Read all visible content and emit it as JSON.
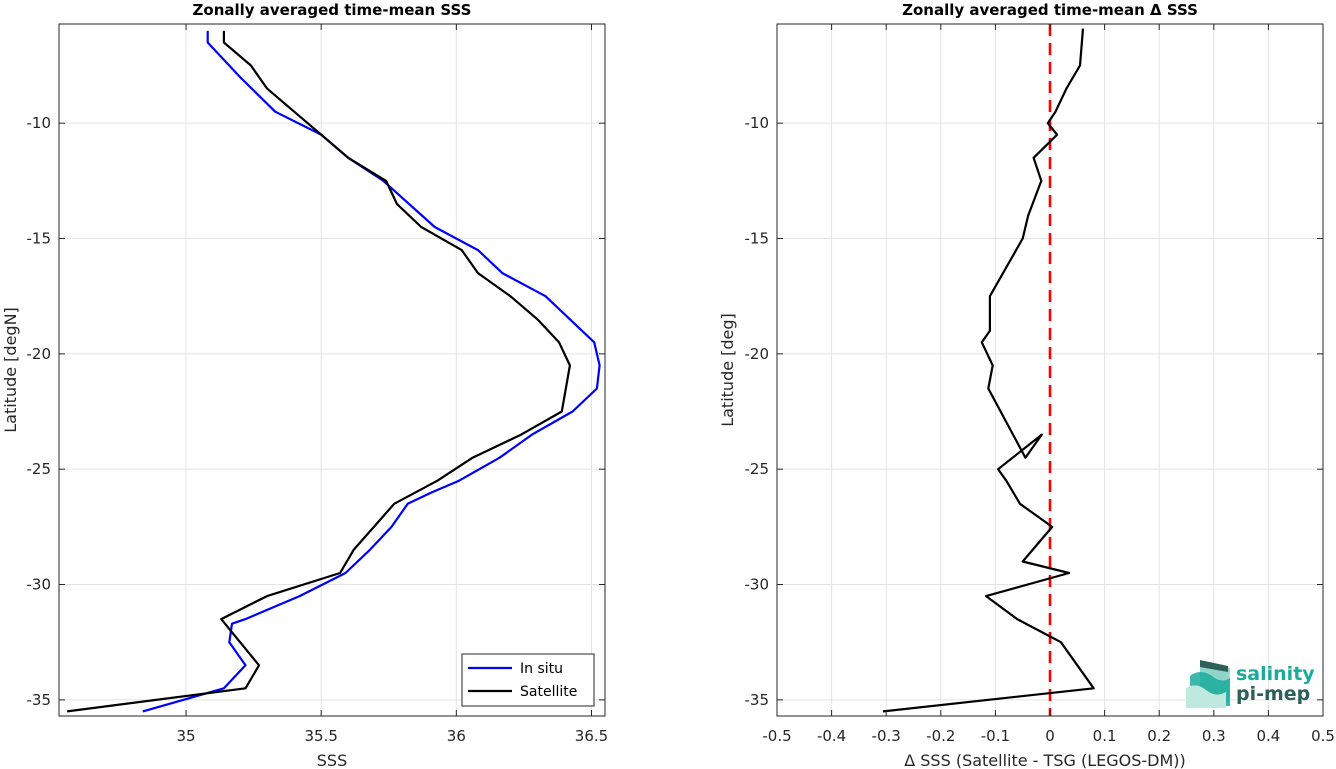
{
  "colors": {
    "in_situ": "#0000ff",
    "satellite": "#000000",
    "zero_line": "#ff0000",
    "logo_primary": "#1aab9b",
    "logo_secondary": "#2f5f5a"
  },
  "logo": {
    "line1": "salinity",
    "line2": "pi-mep",
    "icon": "wave-logo-icon"
  },
  "chart_data": [
    {
      "type": "line",
      "title": "Zonally averaged time-mean SSS",
      "xlabel": "SSS",
      "ylabel": "Latitude [degN]",
      "xlim": [
        34.53,
        36.55
      ],
      "ylim": [
        -35.7,
        -5.7
      ],
      "xticks": [
        35,
        35.5,
        36,
        36.5
      ],
      "yticks": [
        -35,
        -30,
        -25,
        -20,
        -15,
        -10
      ],
      "grid": true,
      "legend": {
        "location": "bottom-right",
        "entries": [
          "In situ",
          "Satellite"
        ]
      },
      "series": [
        {
          "name": "In situ",
          "color": "#0000ff",
          "x": [
            35.08,
            35.08,
            35.2,
            35.33,
            35.5,
            35.6,
            35.73,
            35.92,
            36.08,
            36.17,
            36.33,
            36.51,
            36.53,
            36.52,
            36.43,
            36.28,
            36.16,
            36.01,
            35.91,
            35.82,
            35.76,
            35.68,
            35.59,
            35.42,
            35.22,
            35.17,
            35.16,
            35.22,
            35.14,
            34.84
          ],
          "y": [
            -6,
            -6.5,
            -8,
            -9.5,
            -10.5,
            -11.5,
            -12.5,
            -14.5,
            -15.5,
            -16.5,
            -17.5,
            -19.5,
            -20.5,
            -21.5,
            -22.5,
            -23.5,
            -24.5,
            -25.5,
            -26,
            -26.5,
            -27.5,
            -28.5,
            -29.5,
            -30.5,
            -31.5,
            -31.7,
            -32.5,
            -33.5,
            -34.5,
            -35.5
          ]
        },
        {
          "name": "Satellite",
          "color": "#000000",
          "x": [
            35.14,
            35.14,
            35.24,
            35.3,
            35.4,
            35.5,
            35.6,
            35.74,
            35.78,
            35.87,
            36.02,
            36.08,
            36.2,
            36.3,
            36.38,
            36.42,
            36.39,
            36.24,
            36.06,
            35.93,
            35.77,
            35.62,
            35.57,
            35.3,
            35.13,
            35.27,
            35.22,
            34.56
          ],
          "y": [
            -6,
            -6.5,
            -7.5,
            -8.5,
            -9.5,
            -10.5,
            -11.5,
            -12.5,
            -13.5,
            -14.5,
            -15.5,
            -16.5,
            -17.5,
            -18.5,
            -19.5,
            -20.5,
            -22.5,
            -23.5,
            -24.5,
            -25.5,
            -26.5,
            -28.5,
            -29.5,
            -30.5,
            -31.5,
            -33.5,
            -34.5,
            -35.5
          ]
        }
      ]
    },
    {
      "type": "line",
      "title": "Zonally averaged time-mean Δ SSS",
      "xlabel": "Δ SSS (Satellite - TSG (LEGOS-DM))",
      "ylabel": "Latitude [deg]",
      "xlim": [
        -0.5,
        0.5
      ],
      "ylim": [
        -35.7,
        -5.7
      ],
      "xticks": [
        -0.5,
        -0.4,
        -0.3,
        -0.2,
        -0.1,
        0,
        0.1,
        0.2,
        0.3,
        0.4,
        0.5
      ],
      "yticks": [
        -35,
        -30,
        -25,
        -20,
        -15,
        -10
      ],
      "grid": true,
      "reference_line": {
        "x": 0,
        "style": "dashed",
        "color": "#ff0000"
      },
      "series": [
        {
          "color": "#000000",
          "x": [
            0.06,
            0.06,
            0.055,
            0.03,
            0.01,
            -0.004,
            0.013,
            -0.03,
            -0.016,
            -0.04,
            -0.05,
            -0.11,
            -0.11,
            -0.125,
            -0.105,
            -0.113,
            -0.045,
            -0.015,
            -0.095,
            -0.08,
            -0.055,
            0.004,
            -0.05,
            0.035,
            -0.117,
            -0.06,
            0.02,
            0.08,
            -0.306
          ],
          "y": [
            -5.9,
            -6,
            -7.5,
            -8.5,
            -9.5,
            -10,
            -10.5,
            -11.5,
            -12.5,
            -14,
            -15,
            -17.5,
            -19,
            -19.5,
            -20.5,
            -21.5,
            -24.5,
            -23.5,
            -25,
            -25.5,
            -26.5,
            -27.5,
            -29,
            -29.5,
            -30.5,
            -31.5,
            -32.5,
            -34.5,
            -35.5
          ]
        }
      ]
    }
  ]
}
